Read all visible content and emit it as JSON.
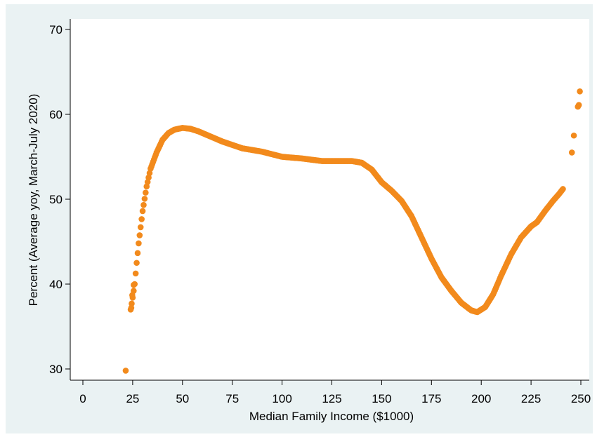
{
  "chart_data": {
    "type": "scatter",
    "title": "",
    "xlabel": "Median Family Income ($1000)",
    "ylabel": "Percent (Average yoy, March-July 2020)",
    "xlim": [
      0,
      250
    ],
    "ylim": [
      29.5,
      71
    ],
    "xticks": [
      0,
      25,
      50,
      75,
      100,
      125,
      150,
      175,
      200,
      225,
      250
    ],
    "yticks": [
      30,
      40,
      50,
      60,
      70
    ],
    "grid": false,
    "legend": "none",
    "colors": {
      "marker": "#f28a1c",
      "plot_bg": "#ffffff",
      "frame_bg": "#eaf2f3",
      "axis": "#000000"
    },
    "curve_anchors": [
      [
        24,
        37.0
      ],
      [
        25,
        38.4
      ],
      [
        26,
        40.0
      ],
      [
        27,
        42.5
      ],
      [
        28,
        44.8
      ],
      [
        30,
        48.6
      ],
      [
        32,
        51.5
      ],
      [
        34,
        53.6
      ],
      [
        37,
        55.5
      ],
      [
        40,
        57.0
      ],
      [
        43,
        57.8
      ],
      [
        46,
        58.2
      ],
      [
        50,
        58.4
      ],
      [
        54,
        58.3
      ],
      [
        58,
        58.0
      ],
      [
        63,
        57.5
      ],
      [
        70,
        56.8
      ],
      [
        80,
        56.0
      ],
      [
        90,
        55.6
      ],
      [
        100,
        55.0
      ],
      [
        110,
        54.8
      ],
      [
        120,
        54.5
      ],
      [
        130,
        54.5
      ],
      [
        135,
        54.5
      ],
      [
        140,
        54.3
      ],
      [
        145,
        53.5
      ],
      [
        150,
        52.0
      ],
      [
        155,
        51.0
      ],
      [
        160,
        49.8
      ],
      [
        165,
        48.0
      ],
      [
        170,
        45.5
      ],
      [
        175,
        43.0
      ],
      [
        180,
        40.8
      ],
      [
        185,
        39.2
      ],
      [
        190,
        37.8
      ],
      [
        195,
        36.9
      ],
      [
        198,
        36.7
      ],
      [
        202,
        37.3
      ],
      [
        206,
        38.8
      ],
      [
        210,
        41.0
      ],
      [
        215,
        43.5
      ],
      [
        220,
        45.5
      ],
      [
        225,
        46.8
      ],
      [
        228,
        47.3
      ],
      [
        232,
        48.6
      ],
      [
        236,
        49.8
      ],
      [
        239,
        50.6
      ],
      [
        241,
        51.2
      ]
    ],
    "isolated_points": [
      [
        21.5,
        29.8
      ],
      [
        24.3,
        37.2
      ],
      [
        24.8,
        38.7
      ],
      [
        25.5,
        39.9
      ],
      [
        245.5,
        55.5
      ],
      [
        246.5,
        57.5
      ],
      [
        248.5,
        60.9
      ],
      [
        249.0,
        61.1
      ],
      [
        249.5,
        62.7
      ]
    ]
  }
}
